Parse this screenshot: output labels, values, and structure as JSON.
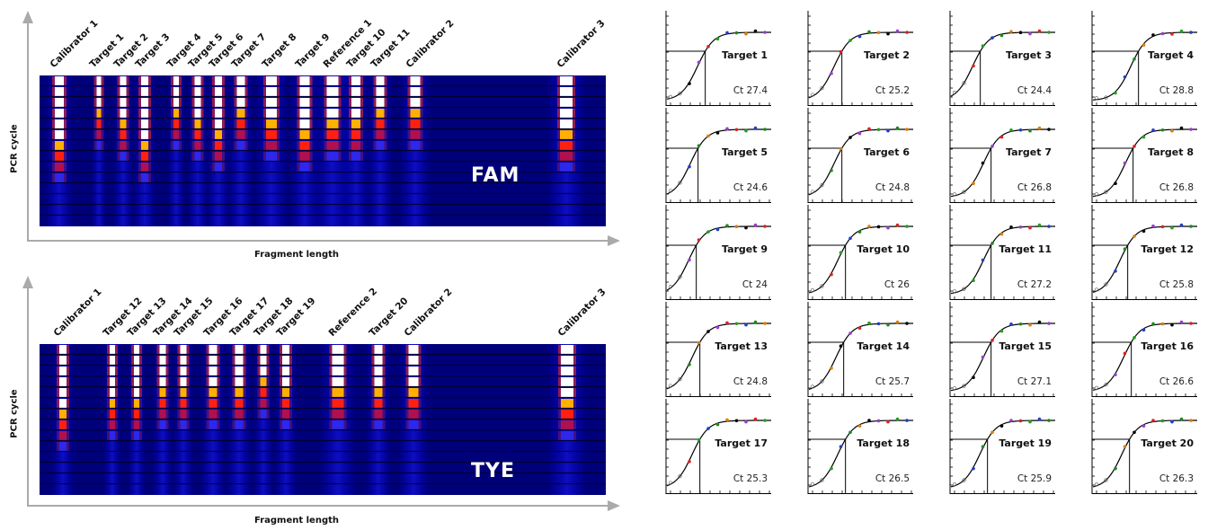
{
  "fam_panel": {
    "y_axis_label": "PCR cycle",
    "x_axis_label": "Fragment length",
    "dye": "FAM",
    "lanes": [
      {
        "label": "Calibrator 1"
      },
      {
        "label": "Target 1"
      },
      {
        "label": "Target 2"
      },
      {
        "label": "Target 3"
      },
      {
        "label": "Target 4"
      },
      {
        "label": "Target 5"
      },
      {
        "label": "Target 6"
      },
      {
        "label": "Target 7"
      },
      {
        "label": "Target 8"
      },
      {
        "label": "Target 9"
      },
      {
        "label": "Reference 1"
      },
      {
        "label": "Target 10"
      },
      {
        "label": "Target 11"
      },
      {
        "label": "Calibrator 2"
      },
      {
        "label": "Calibrator 3"
      }
    ]
  },
  "tye_panel": {
    "y_axis_label": "PCR cycle",
    "x_axis_label": "Fragment length",
    "dye": "TYE",
    "lanes": [
      {
        "label": "Calibrator 1"
      },
      {
        "label": "Target 12"
      },
      {
        "label": "Target 13"
      },
      {
        "label": "Target 14"
      },
      {
        "label": "Target 15"
      },
      {
        "label": "Target 16"
      },
      {
        "label": "Target 17"
      },
      {
        "label": "Target 18"
      },
      {
        "label": "Target 19"
      },
      {
        "label": "Reference 2"
      },
      {
        "label": "Target 20"
      },
      {
        "label": "Calibrator 2"
      },
      {
        "label": "Calibrator 3"
      }
    ]
  },
  "amplification_curves": [
    {
      "name": "Target 1",
      "ct": "Ct 27.4"
    },
    {
      "name": "Target 2",
      "ct": "Ct 25.2"
    },
    {
      "name": "Target 3",
      "ct": "Ct 24.4"
    },
    {
      "name": "Target 4",
      "ct": "Ct 28.8"
    },
    {
      "name": "Target 5",
      "ct": "Ct 24.6"
    },
    {
      "name": "Target 6",
      "ct": "Ct 24.8"
    },
    {
      "name": "Target 7",
      "ct": "Ct 26.8"
    },
    {
      "name": "Target 8",
      "ct": "Ct 26.8"
    },
    {
      "name": "Target 9",
      "ct": "Ct 24"
    },
    {
      "name": "Target 10",
      "ct": "Ct 26"
    },
    {
      "name": "Target 11",
      "ct": "Ct 27.2"
    },
    {
      "name": "Target 12",
      "ct": "Ct 25.8"
    },
    {
      "name": "Target 13",
      "ct": "Ct 24.8"
    },
    {
      "name": "Target 14",
      "ct": "Ct 25.7"
    },
    {
      "name": "Target 15",
      "ct": "Ct 27.1"
    },
    {
      "name": "Target 16",
      "ct": "Ct 26.6"
    },
    {
      "name": "Target 17",
      "ct": "Ct 25.3"
    },
    {
      "name": "Target 18",
      "ct": "Ct 26.5"
    },
    {
      "name": "Target 19",
      "ct": "Ct 25.9"
    },
    {
      "name": "Target 20",
      "ct": "Ct 26.3"
    }
  ],
  "colors": {
    "gel_background": "#00007a",
    "axis": "#aaaaaa",
    "curve": "#000000"
  }
}
